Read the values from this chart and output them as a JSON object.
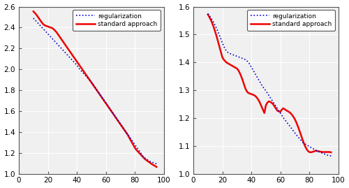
{
  "left": {
    "xlim": [
      0,
      100
    ],
    "ylim": [
      1.0,
      2.6
    ],
    "yticks": [
      1.0,
      1.2,
      1.4,
      1.6,
      1.8,
      2.0,
      2.2,
      2.4,
      2.6
    ],
    "xticks": [
      0,
      20,
      40,
      60,
      80,
      100
    ],
    "reg_x": [
      10,
      11,
      12,
      13,
      14,
      15,
      16,
      17,
      18,
      19,
      20,
      21,
      22,
      23,
      24,
      25,
      26,
      27,
      28,
      29,
      30,
      31,
      32,
      33,
      34,
      35,
      36,
      37,
      38,
      39,
      40,
      41,
      42,
      43,
      44,
      45,
      46,
      47,
      48,
      49,
      50,
      51,
      52,
      53,
      54,
      55,
      56,
      57,
      58,
      59,
      60,
      61,
      62,
      63,
      64,
      65,
      66,
      67,
      68,
      69,
      70,
      71,
      72,
      73,
      74,
      75,
      76,
      77,
      78,
      79,
      80,
      81,
      82,
      83,
      84,
      85,
      86,
      87,
      88,
      89,
      90,
      91,
      92,
      93,
      94,
      95
    ],
    "reg_y": [
      2.49,
      2.475,
      2.46,
      2.445,
      2.43,
      2.415,
      2.4,
      2.385,
      2.37,
      2.355,
      2.34,
      2.325,
      2.31,
      2.295,
      2.28,
      2.265,
      2.25,
      2.235,
      2.22,
      2.205,
      2.19,
      2.175,
      2.16,
      2.145,
      2.13,
      2.115,
      2.1,
      2.085,
      2.07,
      2.055,
      2.04,
      2.02,
      2.0,
      1.985,
      1.97,
      1.955,
      1.94,
      1.925,
      1.91,
      1.895,
      1.88,
      1.86,
      1.84,
      1.82,
      1.8,
      1.78,
      1.76,
      1.74,
      1.72,
      1.7,
      1.68,
      1.66,
      1.64,
      1.62,
      1.6,
      1.58,
      1.56,
      1.54,
      1.52,
      1.5,
      1.48,
      1.46,
      1.44,
      1.42,
      1.4,
      1.38,
      1.36,
      1.34,
      1.32,
      1.3,
      1.28,
      1.26,
      1.24,
      1.22,
      1.2,
      1.18,
      1.16,
      1.15,
      1.14,
      1.13,
      1.12,
      1.115,
      1.11,
      1.105,
      1.1,
      1.095
    ],
    "std_x": [
      10,
      11,
      12,
      13,
      14,
      15,
      16,
      17,
      18,
      19,
      20,
      21,
      22,
      23,
      24,
      25,
      26,
      27,
      28,
      29,
      30,
      31,
      32,
      33,
      34,
      35,
      36,
      37,
      38,
      39,
      40,
      41,
      42,
      43,
      44,
      45,
      46,
      47,
      48,
      49,
      50,
      51,
      52,
      53,
      54,
      55,
      56,
      57,
      58,
      59,
      60,
      61,
      62,
      63,
      64,
      65,
      66,
      67,
      68,
      69,
      70,
      71,
      72,
      73,
      74,
      75,
      76,
      77,
      78,
      79,
      80,
      81,
      82,
      83,
      84,
      85,
      86,
      87,
      88,
      89,
      90,
      91,
      92,
      93,
      94,
      95
    ],
    "std_y": [
      2.555,
      2.54,
      2.525,
      2.505,
      2.485,
      2.465,
      2.445,
      2.43,
      2.42,
      2.415,
      2.41,
      2.405,
      2.4,
      2.395,
      2.385,
      2.37,
      2.355,
      2.335,
      2.315,
      2.295,
      2.275,
      2.255,
      2.235,
      2.215,
      2.195,
      2.175,
      2.155,
      2.135,
      2.115,
      2.095,
      2.075,
      2.055,
      2.035,
      2.015,
      1.995,
      1.975,
      1.955,
      1.935,
      1.915,
      1.895,
      1.875,
      1.855,
      1.835,
      1.815,
      1.795,
      1.775,
      1.755,
      1.735,
      1.715,
      1.695,
      1.675,
      1.655,
      1.635,
      1.615,
      1.595,
      1.575,
      1.555,
      1.535,
      1.515,
      1.495,
      1.475,
      1.455,
      1.435,
      1.415,
      1.395,
      1.375,
      1.35,
      1.325,
      1.3,
      1.275,
      1.25,
      1.23,
      1.215,
      1.2,
      1.185,
      1.17,
      1.155,
      1.14,
      1.13,
      1.12,
      1.11,
      1.1,
      1.09,
      1.082,
      1.074,
      1.065
    ]
  },
  "right": {
    "xlim": [
      0,
      100
    ],
    "ylim": [
      1.0,
      1.6
    ],
    "yticks": [
      1.0,
      1.1,
      1.2,
      1.3,
      1.4,
      1.5,
      1.6
    ],
    "xticks": [
      0,
      20,
      40,
      60,
      80,
      100
    ],
    "reg_x": [
      10,
      11,
      12,
      13,
      14,
      15,
      16,
      17,
      18,
      19,
      20,
      21,
      22,
      23,
      24,
      25,
      26,
      27,
      28,
      29,
      30,
      31,
      32,
      33,
      34,
      35,
      36,
      37,
      38,
      39,
      40,
      41,
      42,
      43,
      44,
      45,
      46,
      47,
      48,
      49,
      50,
      51,
      52,
      53,
      54,
      55,
      56,
      57,
      58,
      59,
      60,
      61,
      62,
      63,
      64,
      65,
      66,
      67,
      68,
      69,
      70,
      71,
      72,
      73,
      74,
      75,
      76,
      77,
      78,
      79,
      80,
      81,
      82,
      83,
      84,
      85,
      86,
      87,
      88,
      89,
      90,
      91,
      92,
      93,
      94,
      95
    ],
    "reg_y": [
      1.575,
      1.568,
      1.56,
      1.552,
      1.543,
      1.533,
      1.522,
      1.51,
      1.497,
      1.484,
      1.47,
      1.458,
      1.447,
      1.44,
      1.435,
      1.432,
      1.43,
      1.428,
      1.426,
      1.424,
      1.422,
      1.42,
      1.418,
      1.416,
      1.414,
      1.412,
      1.41,
      1.405,
      1.4,
      1.392,
      1.383,
      1.374,
      1.365,
      1.356,
      1.347,
      1.338,
      1.329,
      1.32,
      1.312,
      1.305,
      1.298,
      1.29,
      1.282,
      1.274,
      1.266,
      1.258,
      1.25,
      1.242,
      1.234,
      1.226,
      1.218,
      1.21,
      1.202,
      1.195,
      1.188,
      1.181,
      1.175,
      1.168,
      1.161,
      1.154,
      1.147,
      1.14,
      1.134,
      1.128,
      1.122,
      1.116,
      1.11,
      1.107,
      1.104,
      1.101,
      1.098,
      1.095,
      1.092,
      1.089,
      1.086,
      1.083,
      1.08,
      1.078,
      1.076,
      1.074,
      1.072,
      1.07,
      1.068,
      1.066,
      1.065,
      1.064
    ],
    "std_x": [
      10,
      11,
      12,
      13,
      14,
      15,
      16,
      17,
      18,
      19,
      20,
      21,
      22,
      23,
      24,
      25,
      26,
      27,
      28,
      29,
      30,
      31,
      32,
      33,
      34,
      35,
      36,
      37,
      38,
      39,
      40,
      41,
      42,
      43,
      44,
      45,
      46,
      47,
      48,
      49,
      50,
      51,
      52,
      53,
      54,
      55,
      56,
      57,
      58,
      59,
      60,
      61,
      62,
      63,
      64,
      65,
      66,
      67,
      68,
      69,
      70,
      71,
      72,
      73,
      74,
      75,
      76,
      77,
      78,
      79,
      80,
      81,
      82,
      83,
      84,
      85,
      86,
      87,
      88,
      89,
      90,
      91,
      92,
      93,
      94,
      95
    ],
    "std_y": [
      1.572,
      1.563,
      1.553,
      1.541,
      1.527,
      1.511,
      1.494,
      1.475,
      1.456,
      1.437,
      1.418,
      1.41,
      1.404,
      1.399,
      1.396,
      1.393,
      1.39,
      1.387,
      1.384,
      1.381,
      1.378,
      1.372,
      1.362,
      1.35,
      1.336,
      1.32,
      1.305,
      1.295,
      1.29,
      1.288,
      1.286,
      1.284,
      1.282,
      1.278,
      1.272,
      1.264,
      1.254,
      1.242,
      1.23,
      1.218,
      1.245,
      1.255,
      1.26,
      1.258,
      1.255,
      1.25,
      1.242,
      1.234,
      1.226,
      1.224,
      1.222,
      1.23,
      1.235,
      1.232,
      1.228,
      1.225,
      1.222,
      1.218,
      1.212,
      1.205,
      1.196,
      1.185,
      1.172,
      1.158,
      1.143,
      1.128,
      1.113,
      1.1,
      1.09,
      1.082,
      1.078,
      1.077,
      1.078,
      1.08,
      1.082,
      1.082,
      1.081,
      1.08,
      1.079,
      1.078,
      1.078,
      1.078,
      1.078,
      1.078,
      1.078,
      1.077
    ]
  },
  "reg_color": "#0000cc",
  "std_color": "#ee0000",
  "reg_label": "regularization",
  "std_label": "standard approach",
  "background_color": "#f0f0f0",
  "grid_color": "#e8e8e8",
  "linewidth_reg": 1.2,
  "linewidth_std": 1.8
}
